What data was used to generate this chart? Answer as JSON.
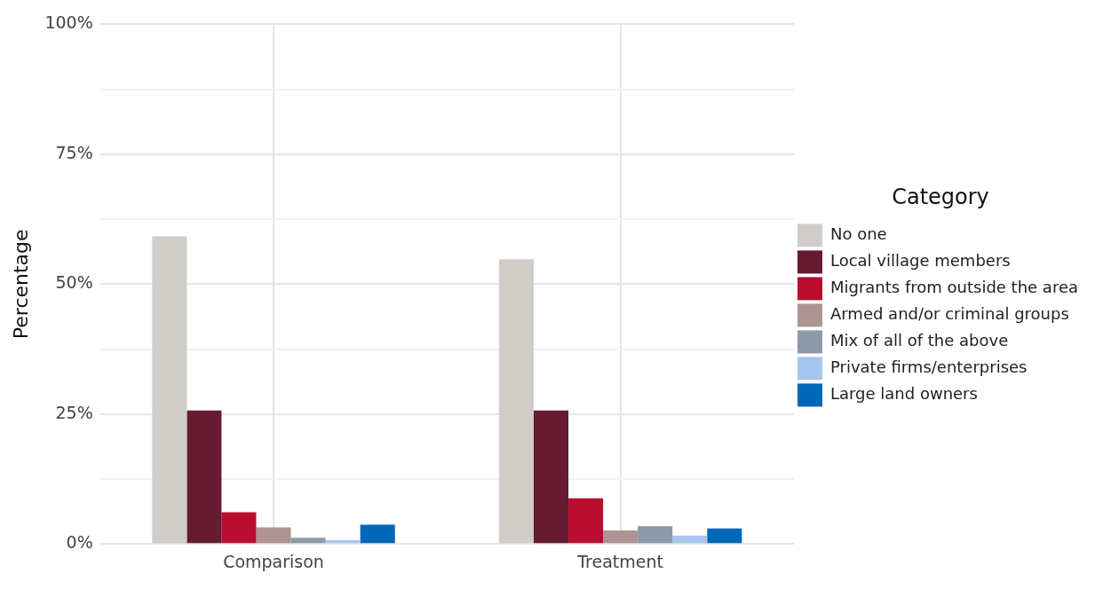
{
  "chart_data": {
    "type": "bar",
    "ylabel": "Percentage",
    "legend_title": "Category",
    "categories": [
      "Comparison",
      "Treatment"
    ],
    "series": [
      {
        "name": "No one",
        "color": "#d0cdc9",
        "values": [
          59.2,
          54.8
        ]
      },
      {
        "name": "Local village members",
        "color": "#651c32",
        "values": [
          25.7,
          25.7
        ]
      },
      {
        "name": "Migrants from outside the area",
        "color": "#ba0c2f",
        "values": [
          6.1,
          8.8
        ]
      },
      {
        "name": "Armed and/or criminal groups",
        "color": "#ae9495",
        "values": [
          3.2,
          2.6
        ]
      },
      {
        "name": "Mix of all of the above",
        "color": "#8c9aa8",
        "values": [
          1.2,
          3.4
        ]
      },
      {
        "name": "Private firms/enterprises",
        "color": "#a7c6ed",
        "values": [
          0.7,
          1.6
        ]
      },
      {
        "name": "Large land owners",
        "color": "#0067b9",
        "values": [
          3.7,
          3.0
        ]
      }
    ],
    "ylim": [
      0,
      100
    ],
    "yticks": [
      {
        "value": 0,
        "label": "0%"
      },
      {
        "value": 12.5,
        "label": null
      },
      {
        "value": 25,
        "label": "25%"
      },
      {
        "value": 37.5,
        "label": null
      },
      {
        "value": 50,
        "label": "50%"
      },
      {
        "value": 62.5,
        "label": null
      },
      {
        "value": 75,
        "label": "75%"
      },
      {
        "value": 87.5,
        "label": null
      },
      {
        "value": 100,
        "label": "100%"
      }
    ],
    "grid": true,
    "legend": "right"
  }
}
